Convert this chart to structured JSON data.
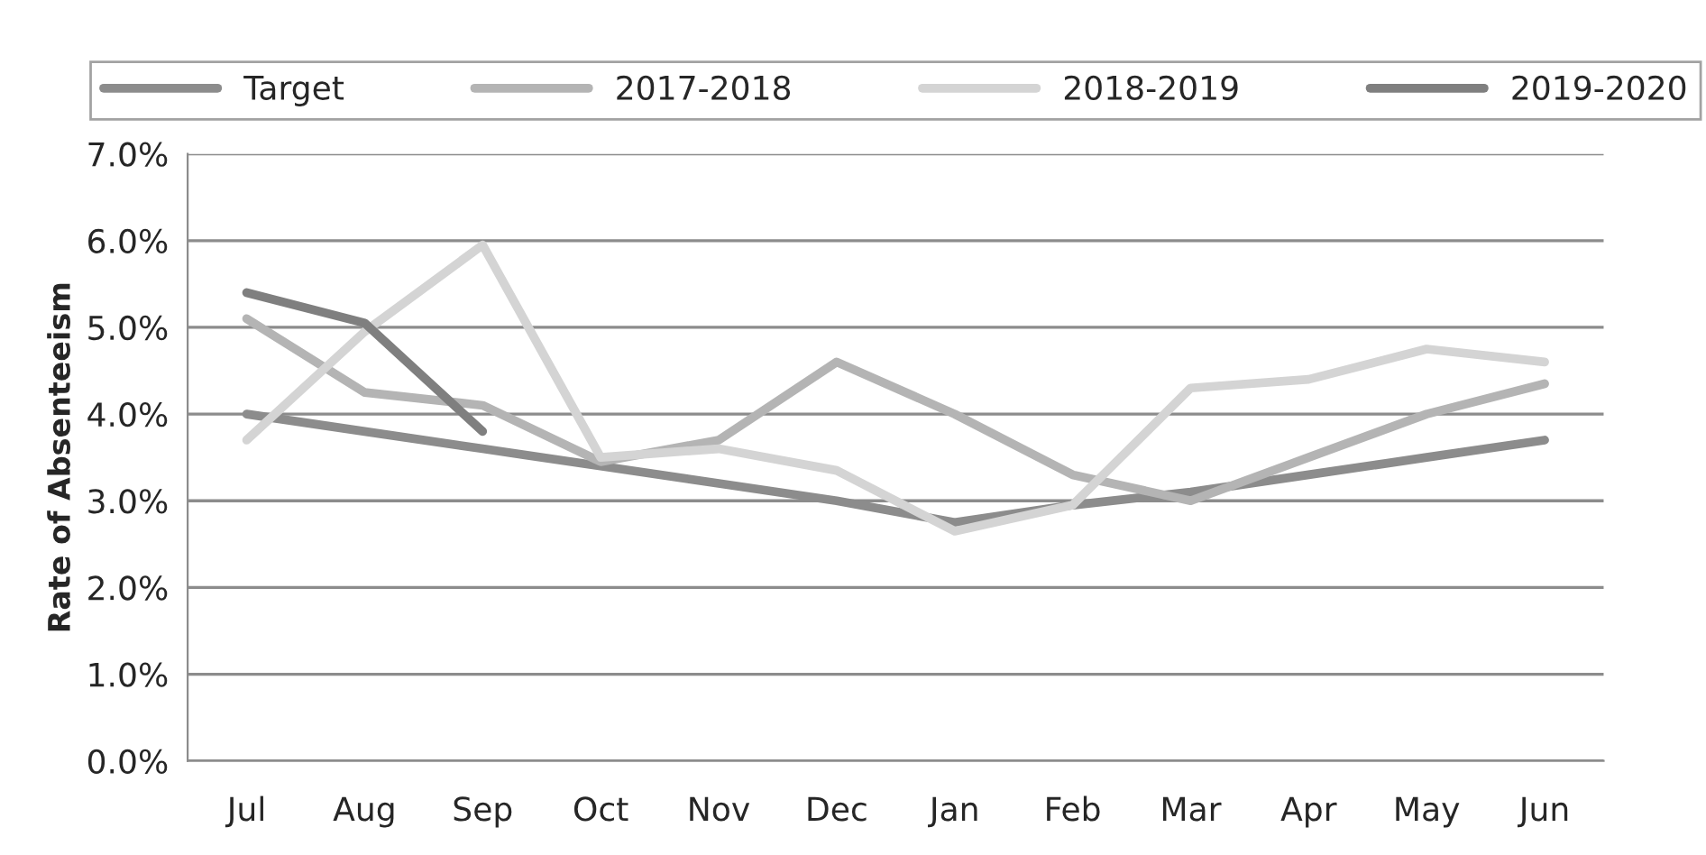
{
  "chart_data": {
    "type": "line",
    "ylabel": "Rate of Absenteeism",
    "categories": [
      "Jul",
      "Aug",
      "Sep",
      "Oct",
      "Nov",
      "Dec",
      "Jan",
      "Feb",
      "Mar",
      "Apr",
      "May",
      "Jun"
    ],
    "series": [
      {
        "name": "Target",
        "color": "#8c8c8c",
        "values": [
          4.0,
          3.8,
          3.6,
          3.4,
          3.2,
          3.0,
          2.75,
          2.95,
          3.1,
          3.3,
          3.5,
          3.7
        ]
      },
      {
        "name": "2017-2018",
        "color": "#b4b4b4",
        "values": [
          5.1,
          4.25,
          4.1,
          3.45,
          3.7,
          4.6,
          4.0,
          3.3,
          3.0,
          3.5,
          4.0,
          4.35
        ]
      },
      {
        "name": "2018-2019",
        "color": "#d4d4d4",
        "values": [
          3.7,
          4.95,
          5.95,
          3.5,
          3.6,
          3.35,
          2.65,
          2.95,
          4.3,
          4.4,
          4.75,
          4.6
        ]
      },
      {
        "name": "2019-2020",
        "color": "#7f7f7f",
        "values": [
          5.4,
          5.05,
          3.8,
          null,
          null,
          null,
          null,
          null,
          null,
          null,
          null,
          null
        ]
      }
    ],
    "ylim": [
      0,
      7
    ],
    "yticks": [
      {
        "value": 0,
        "label": "0.0%"
      },
      {
        "value": 1,
        "label": "1.0%"
      },
      {
        "value": 2,
        "label": "2.0%"
      },
      {
        "value": 3,
        "label": "3.0%"
      },
      {
        "value": 4,
        "label": "4.0%"
      },
      {
        "value": 5,
        "label": "5.0%"
      },
      {
        "value": 6,
        "label": "6.0%"
      },
      {
        "value": 7,
        "label": "7.0%"
      }
    ],
    "grid": "y",
    "legend": "top"
  }
}
